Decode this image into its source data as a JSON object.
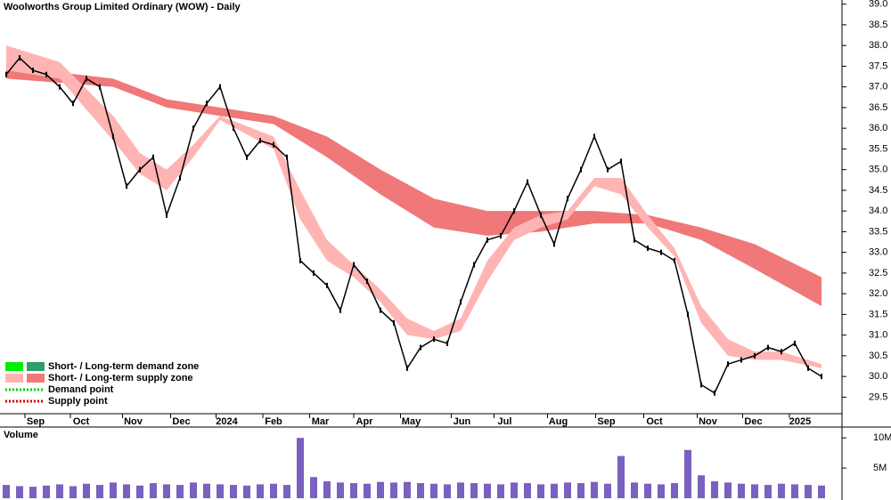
{
  "chart_data": [
    {
      "type": "price",
      "title": "Woolworths Group Limited Ordinary (WOW) - Daily",
      "xlim": [
        -0.4667,
        61.2
      ],
      "xticks": [
        {
          "value": 2.2,
          "label": "Sep"
        },
        {
          "value": 5.6,
          "label": "Oct"
        },
        {
          "value": 9.5,
          "label": "Nov"
        },
        {
          "value": 13.1,
          "label": "Dec"
        },
        {
          "value": 16.5,
          "label": "2024"
        },
        {
          "value": 20,
          "label": "Feb"
        },
        {
          "value": 23.5,
          "label": "Mar"
        },
        {
          "value": 26.8,
          "label": "Apr"
        },
        {
          "value": 30.3,
          "label": "May"
        },
        {
          "value": 34.1,
          "label": "Jun"
        },
        {
          "value": 37.3,
          "label": "Jul"
        },
        {
          "value": 41.3,
          "label": "Aug"
        },
        {
          "value": 44.9,
          "label": "Sep"
        },
        {
          "value": 48.5,
          "label": "Oct"
        },
        {
          "value": 52.5,
          "label": "Nov"
        },
        {
          "value": 55.9,
          "label": "Dec"
        },
        {
          "value": 59.4,
          "label": "2025"
        }
      ],
      "ylim": [
        29.1,
        39.1
      ],
      "yticks": [
        29.5,
        {
          "value": 30,
          "label": "30.0"
        },
        30.5,
        {
          "value": 31,
          "label": "31.0"
        },
        31.5,
        {
          "value": 32,
          "label": "32.0"
        },
        32.5,
        {
          "value": 33,
          "label": "33.0"
        },
        33.5,
        {
          "value": 34,
          "label": "34.0"
        },
        34.5,
        {
          "value": 35,
          "label": "35.0"
        },
        35.5,
        {
          "value": 36,
          "label": "36.0"
        },
        36.5,
        {
          "value": 37,
          "label": "37.0"
        },
        37.5,
        {
          "value": 38,
          "label": "38.0"
        },
        38.5,
        {
          "value": 39,
          "label": "39.0"
        }
      ],
      "color": "#000000",
      "values": [
        37.3,
        37.7,
        37.4,
        37.3,
        37.0,
        36.6,
        37.2,
        37.0,
        35.8,
        34.6,
        35.0,
        35.3,
        33.9,
        34.8,
        36.0,
        36.6,
        37.0,
        36.0,
        35.3,
        35.7,
        35.6,
        35.3,
        32.8,
        32.5,
        32.2,
        31.6,
        32.7,
        32.3,
        31.6,
        31.3,
        30.2,
        30.7,
        30.9,
        30.8,
        31.8,
        32.7,
        33.3,
        33.4,
        34.0,
        34.7,
        33.9,
        33.2,
        34.3,
        35.0,
        35.8,
        35.0,
        35.2,
        33.3,
        33.1,
        33.0,
        32.8,
        31.5,
        29.8,
        29.6,
        30.3,
        30.4,
        30.5,
        30.7,
        30.6,
        30.8,
        30.2,
        30.0
      ],
      "bands": [
        {
          "color": "#f07878",
          "x": [
            0,
            8,
            12,
            16,
            20,
            24,
            28,
            32,
            36,
            40,
            44,
            48,
            52,
            56,
            61
          ],
          "upper": [
            37.5,
            37.2,
            36.7,
            36.5,
            36.3,
            35.8,
            35.0,
            34.3,
            34.0,
            34.0,
            34.0,
            33.9,
            33.6,
            33.2,
            32.4
          ],
          "lower": [
            37.2,
            37.0,
            36.5,
            36.3,
            36.1,
            35.3,
            34.4,
            33.6,
            33.4,
            33.5,
            33.7,
            33.7,
            33.3,
            32.6,
            31.7
          ]
        },
        {
          "color": "#ffb4b4",
          "x": [
            0,
            4,
            8,
            10,
            12,
            14,
            16,
            20,
            22,
            24,
            26,
            28,
            30,
            32,
            34,
            36,
            38,
            40,
            42,
            44,
            46,
            48,
            50,
            52,
            54,
            56,
            58,
            61
          ],
          "upper": [
            38.0,
            37.6,
            36.3,
            35.4,
            35.0,
            35.6,
            36.3,
            35.8,
            34.5,
            33.3,
            32.7,
            32.1,
            31.4,
            31.1,
            31.4,
            32.8,
            33.6,
            33.9,
            34.0,
            34.8,
            34.8,
            33.9,
            33.1,
            31.7,
            30.9,
            30.6,
            30.6,
            30.3
          ],
          "lower": [
            37.4,
            37.2,
            35.7,
            34.9,
            34.5,
            35.3,
            36.2,
            35.5,
            33.8,
            32.8,
            32.4,
            31.8,
            31.0,
            30.9,
            31.1,
            32.3,
            33.3,
            33.6,
            33.8,
            34.6,
            34.4,
            33.6,
            32.9,
            31.3,
            30.5,
            30.4,
            30.4,
            30.2
          ]
        }
      ],
      "legend": [
        {
          "text": "Short- / Long-term demand zone",
          "colors": [
            "#00ee00",
            "#2e9e6a"
          ]
        },
        {
          "text": "Short- / Long-term supply zone",
          "colors": [
            "#ffb4b4",
            "#f07878"
          ]
        },
        {
          "text": "Demand point",
          "colors": [
            "#00cc00"
          ]
        },
        {
          "text": "Supply point",
          "colors": [
            "#cc0000"
          ]
        }
      ]
    },
    {
      "type": "volume",
      "title": "Volume",
      "color": "#7a60c0",
      "xlim": [
        -0.4667,
        61.2
      ],
      "ylim": [
        0,
        11500000
      ],
      "yticks": [
        {
          "value": 5000000,
          "label": "5M"
        },
        {
          "value": 10000000,
          "label": "10M"
        }
      ],
      "values": [
        2200000,
        2000000,
        1900000,
        2100000,
        2300000,
        2000000,
        2400000,
        2200000,
        2600000,
        2300000,
        2100000,
        2500000,
        2300000,
        2200000,
        2600000,
        2400000,
        2300000,
        2200000,
        2100000,
        2300000,
        2400000,
        2200000,
        10000000,
        3500000,
        2800000,
        2600000,
        2500000,
        2400000,
        2700000,
        2600000,
        2700000,
        2500000,
        2400000,
        2300000,
        2600000,
        2500000,
        2400000,
        2300000,
        2600000,
        2500000,
        2300000,
        2400000,
        2600000,
        2500000,
        2700000,
        2400000,
        7000000,
        2600000,
        2400000,
        2300000,
        2500000,
        8000000,
        3800000,
        2800000,
        2600000,
        2400000,
        2300000,
        2200000,
        2400000,
        2300000,
        2200000,
        2100000
      ]
    }
  ]
}
